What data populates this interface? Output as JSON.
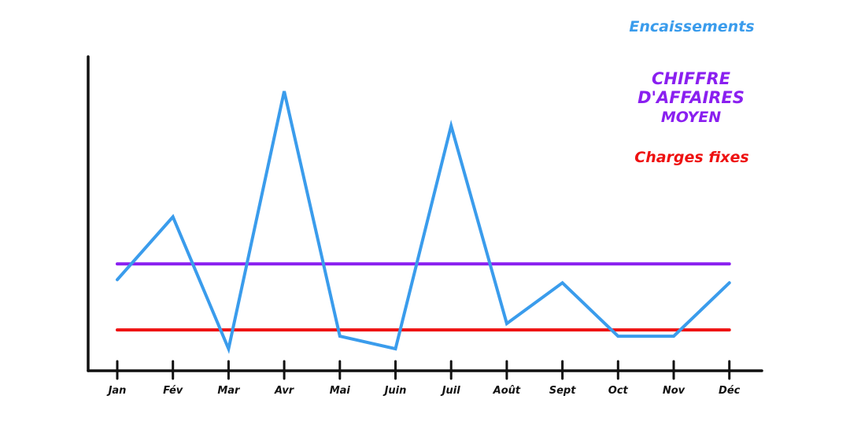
{
  "chart_data": {
    "type": "line",
    "categories": [
      "Jan",
      "Fév",
      "Mar",
      "Avr",
      "Mai",
      "Juin",
      "Juil",
      "Août",
      "Sept",
      "Oct",
      "Nov",
      "Déc"
    ],
    "series": [
      {
        "name": "Encaissements",
        "color": "#3a9cec",
        "values": [
          29,
          49,
          7,
          89,
          11,
          7,
          78,
          15,
          28,
          11,
          11,
          28
        ]
      },
      {
        "name": "CHIFFRE D'AFFAIRES MOYEN",
        "color": "#8a1ff0",
        "values": [
          34,
          34,
          34,
          34,
          34,
          34,
          34,
          34,
          34,
          34,
          34,
          34
        ]
      },
      {
        "name": "Charges fixes",
        "color": "#ee1111",
        "values": [
          13,
          13,
          13,
          13,
          13,
          13,
          13,
          13,
          13,
          13,
          13,
          13
        ]
      }
    ],
    "ylim": [
      0,
      100
    ],
    "grid": false,
    "legend_position": "top-right"
  },
  "legend": {
    "encaissements": "Encaissements",
    "ca_line1": "CHIFFRE",
    "ca_line2": "D'AFFAIRES",
    "ca_line3": "MOYEN",
    "charges": "Charges fixes"
  },
  "colors": {
    "axis": "#111111",
    "encaissements": "#3a9cec",
    "ca": "#8a1ff0",
    "charges": "#ee1111"
  }
}
